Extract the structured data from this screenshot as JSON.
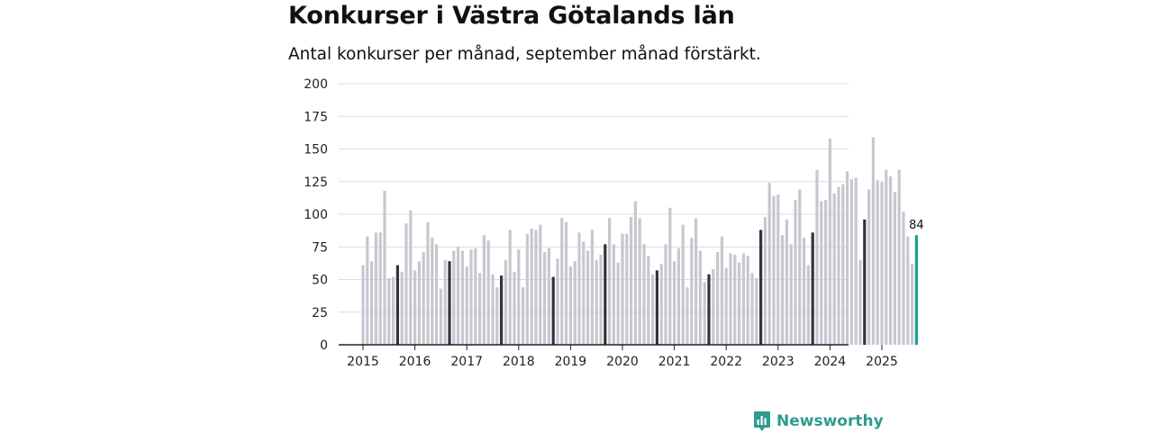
{
  "title": "Konkurser i Västra Götalands län",
  "subtitle": "Antal konkurser per månad, september månad förstärkt.",
  "brand": {
    "name": "Newsworthy",
    "icon": "bar-chart-logo-icon",
    "color": "#2e9b8f"
  },
  "colors": {
    "bar": "#c7c7d0",
    "september": "#33333c",
    "latest": "#16a196",
    "grid": "#dcdcdc",
    "axis": "#222222"
  },
  "chart_data": {
    "type": "bar",
    "title": "Konkurser i Västra Götalands län",
    "subtitle": "Antal konkurser per månad, september månad förstärkt.",
    "xlabel": "",
    "ylabel": "",
    "ylim": [
      0,
      200
    ],
    "yticks": [
      0,
      25,
      50,
      75,
      100,
      125,
      150,
      175,
      200
    ],
    "grid": true,
    "start": "2015-01",
    "x_tick_labels": [
      "2015",
      "2016",
      "2017",
      "2018",
      "2019",
      "2020",
      "2021",
      "2022",
      "2023",
      "2024",
      "2025"
    ],
    "highlight": "september",
    "latest_label": "84",
    "series": [
      {
        "name": "Antal konkurser",
        "values": [
          61,
          83,
          64,
          86,
          86,
          118,
          51,
          52,
          61,
          56,
          93,
          103,
          57,
          64,
          71,
          94,
          82,
          77,
          43,
          65,
          64,
          72,
          75,
          72,
          60,
          73,
          74,
          55,
          84,
          80,
          54,
          44,
          53,
          65,
          88,
          56,
          73,
          44,
          85,
          89,
          88,
          92,
          71,
          74,
          52,
          66,
          97,
          94,
          60,
          64,
          86,
          79,
          72,
          88,
          65,
          69,
          77,
          97,
          77,
          63,
          85,
          85,
          98,
          110,
          97,
          77,
          68,
          54,
          57,
          62,
          77,
          105,
          64,
          74,
          92,
          44,
          82,
          97,
          72,
          48,
          54,
          58,
          71,
          83,
          59,
          70,
          69,
          63,
          70,
          68,
          55,
          51,
          88,
          98,
          124,
          114,
          115,
          84,
          96,
          77,
          111,
          119,
          82,
          61,
          86,
          134,
          110,
          111,
          158,
          116,
          121,
          123,
          133,
          127,
          128,
          65,
          96,
          119,
          159,
          126,
          125,
          134,
          129,
          117,
          134,
          102,
          83,
          62,
          84
        ]
      }
    ]
  }
}
